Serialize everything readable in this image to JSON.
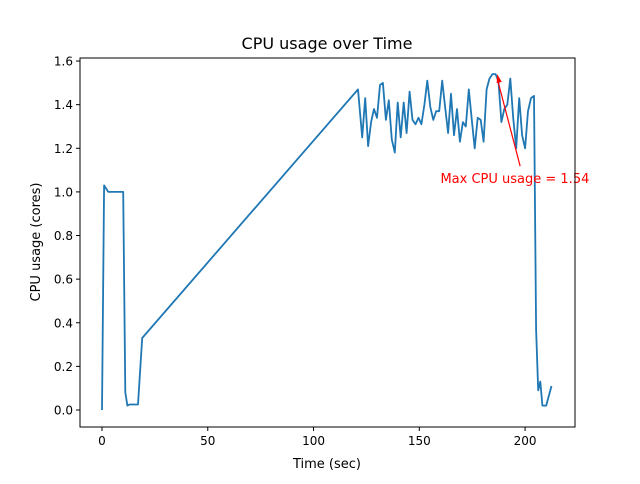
{
  "chart_data": {
    "type": "line",
    "title": "CPU usage over Time",
    "xlabel": "Time (sec)",
    "ylabel": "CPU usage (cores)",
    "xlim": [
      -10.4,
      223.6
    ],
    "ylim": [
      -0.078,
      1.614
    ],
    "xticks": [
      0,
      50,
      100,
      150,
      200
    ],
    "xtick_labels": [
      "0",
      "50",
      "100",
      "150",
      "200"
    ],
    "yticks": [
      0.0,
      0.2,
      0.4,
      0.6,
      0.8,
      1.0,
      1.2,
      1.4,
      1.6
    ],
    "ytick_labels": [
      "0.0",
      "0.2",
      "0.4",
      "0.6",
      "0.8",
      "1.0",
      "1.2",
      "1.4",
      "1.6"
    ],
    "grid": false,
    "series": [
      {
        "name": "CPU usage",
        "color": "#1f77b4",
        "x": [
          0,
          1,
          3,
          10,
          11,
          12,
          13,
          17,
          19,
          121,
          123,
          124.4,
          125.8,
          127.2,
          128.6,
          130,
          131.4,
          132.8,
          134.2,
          135.6,
          137,
          138.4,
          139.8,
          141.2,
          142.6,
          144,
          145.4,
          146.8,
          148.2,
          149.6,
          151,
          152.4,
          153.8,
          155.2,
          156.6,
          158,
          159.4,
          160.8,
          162.2,
          163.6,
          165,
          166.4,
          167.8,
          169.2,
          170.6,
          172,
          173.4,
          174.8,
          176.2,
          177.6,
          179,
          180.4,
          181.8,
          183.2,
          184.6,
          186,
          187.4,
          188.8,
          190.2,
          191.6,
          193,
          194.4,
          195.8,
          197.2,
          198.6,
          200,
          201.4,
          202.8,
          204.2,
          205.2,
          206.2,
          207.2,
          208.2,
          210,
          212.5
        ],
        "y": [
          0.0,
          1.03,
          1.0,
          1.0,
          0.08,
          0.02,
          0.025,
          0.025,
          0.33,
          1.47,
          1.25,
          1.43,
          1.21,
          1.32,
          1.38,
          1.34,
          1.49,
          1.5,
          1.33,
          1.42,
          1.24,
          1.18,
          1.41,
          1.25,
          1.41,
          1.27,
          1.46,
          1.33,
          1.31,
          1.34,
          1.31,
          1.4,
          1.51,
          1.39,
          1.33,
          1.37,
          1.37,
          1.51,
          1.39,
          1.27,
          1.45,
          1.26,
          1.38,
          1.23,
          1.32,
          1.3,
          1.47,
          1.33,
          1.2,
          1.34,
          1.33,
          1.23,
          1.47,
          1.52,
          1.54,
          1.54,
          1.51,
          1.32,
          1.38,
          1.4,
          1.52,
          1.34,
          1.2,
          1.43,
          1.26,
          1.2,
          1.37,
          1.43,
          1.44,
          0.37,
          0.09,
          0.13,
          0.02,
          0.02,
          0.11
        ]
      }
    ],
    "annotations": [
      {
        "text": "Max CPU usage = 1.54",
        "color": "#ff0000",
        "point": [
          186.8,
          1.54
        ],
        "text_pos": [
          160,
          1.04
        ]
      }
    ]
  }
}
